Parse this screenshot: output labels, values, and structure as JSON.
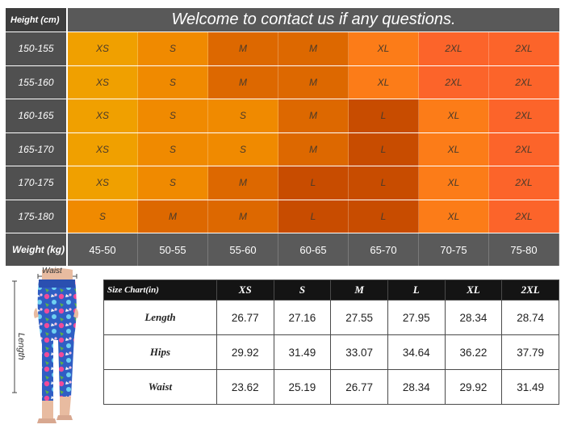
{
  "grid": {
    "height_label": "Height  (cm)",
    "title": "Welcome to contact us if any questions.",
    "weight_label": "Weight  (kg)",
    "weights": [
      "45-50",
      "50-55",
      "55-60",
      "60-65",
      "65-70",
      "70-75",
      "75-80"
    ],
    "rows": [
      {
        "height": "150-155",
        "sizes": [
          "XS",
          "S",
          "M",
          "M",
          "XL",
          "2XL",
          "2XL"
        ]
      },
      {
        "height": "155-160",
        "sizes": [
          "XS",
          "S",
          "M",
          "M",
          "XL",
          "2XL",
          "2XL"
        ]
      },
      {
        "height": "160-165",
        "sizes": [
          "XS",
          "S",
          "S",
          "M",
          "L",
          "XL",
          "2XL"
        ]
      },
      {
        "height": "165-170",
        "sizes": [
          "XS",
          "S",
          "S",
          "M",
          "L",
          "XL",
          "2XL"
        ]
      },
      {
        "height": "170-175",
        "sizes": [
          "XS",
          "S",
          "M",
          "L",
          "L",
          "XL",
          "2XL"
        ]
      },
      {
        "height": "175-180",
        "sizes": [
          "S",
          "M",
          "M",
          "L",
          "L",
          "XL",
          "2XL"
        ]
      }
    ],
    "size_colors": {
      "XS": "#f0a000",
      "S": "#f08a00",
      "M": "#dd6800",
      "L": "#c84c00",
      "XL": "#fc7c18",
      "2XL": "#fc642a"
    }
  },
  "figure": {
    "waist_label": "Waist",
    "length_label": "Length"
  },
  "measure": {
    "header": [
      "Size Chart(in)",
      "XS",
      "S",
      "M",
      "L",
      "XL",
      "2XL"
    ],
    "rows": [
      {
        "label": "Length",
        "values": [
          "26.77",
          "27.16",
          "27.55",
          "27.95",
          "28.34",
          "28.74"
        ]
      },
      {
        "label": "Hips",
        "values": [
          "29.92",
          "31.49",
          "33.07",
          "34.64",
          "36.22",
          "37.79"
        ]
      },
      {
        "label": "Waist",
        "values": [
          "23.62",
          "25.19",
          "26.77",
          "28.34",
          "29.92",
          "31.49"
        ]
      }
    ]
  }
}
